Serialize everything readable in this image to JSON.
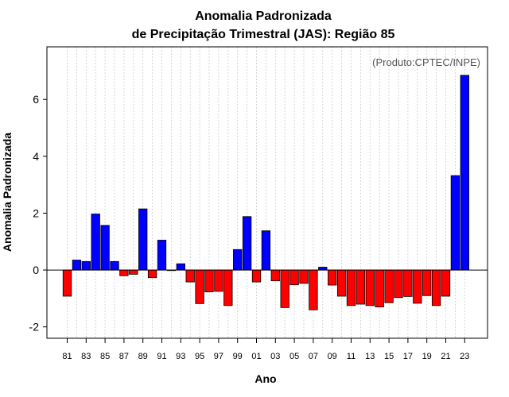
{
  "chart_data": {
    "type": "bar",
    "title": "Anomalia Padronizada",
    "subtitle": "de Precipitação Trimestral (JAS): Região 85",
    "xlabel": "Ano",
    "ylabel": "Anomalia Padronizada",
    "annotation": "(Produto:CPTEC/INPE)",
    "ylim": [
      -2.4,
      7.85
    ],
    "yticks": [
      -2,
      0,
      2,
      4,
      6
    ],
    "positive_color": "#0000ff",
    "negative_color": "#ff0000",
    "categories": [
      "81",
      "82",
      "83",
      "84",
      "85",
      "86",
      "87",
      "88",
      "89",
      "90",
      "91",
      "92",
      "93",
      "94",
      "95",
      "96",
      "97",
      "98",
      "99",
      "00",
      "01",
      "02",
      "03",
      "04",
      "05",
      "06",
      "07",
      "08",
      "09",
      "10",
      "11",
      "12",
      "13",
      "14",
      "15",
      "16",
      "17",
      "18",
      "19",
      "20",
      "21",
      "22",
      "23"
    ],
    "xtick_labels": [
      "81",
      "83",
      "85",
      "87",
      "89",
      "91",
      "93",
      "95",
      "97",
      "99",
      "01",
      "03",
      "05",
      "07",
      "09",
      "11",
      "13",
      "15",
      "17",
      "19",
      "21",
      "23"
    ],
    "values": [
      -0.92,
      0.35,
      0.3,
      1.97,
      1.57,
      0.3,
      -0.2,
      -0.15,
      2.15,
      -0.27,
      1.05,
      -0.02,
      0.22,
      -0.42,
      -1.18,
      -0.77,
      -0.75,
      -1.25,
      0.72,
      1.88,
      -0.42,
      1.38,
      -0.38,
      -1.32,
      -0.52,
      -0.47,
      -1.4,
      0.1,
      -0.53,
      -0.92,
      -1.25,
      -1.2,
      -1.25,
      -1.3,
      -1.15,
      -0.97,
      -0.93,
      -1.17,
      -0.9,
      -1.25,
      -0.92,
      3.32,
      6.85
    ]
  }
}
